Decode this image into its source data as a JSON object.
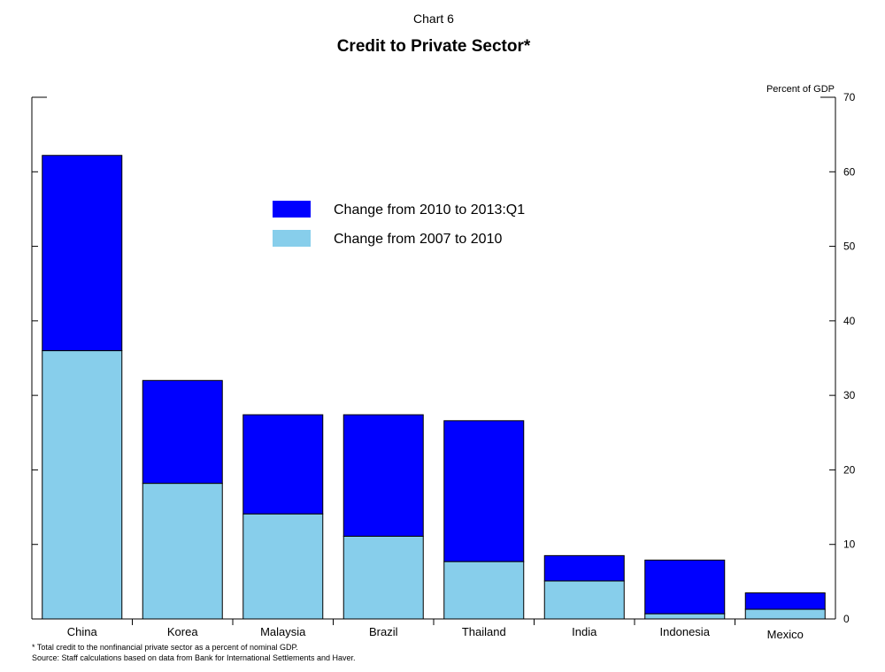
{
  "chart_data": {
    "type": "bar",
    "stacked": true,
    "caption": "Chart 6",
    "title": "Credit to Private Sector*",
    "ylabel": "Percent of GDP",
    "ylim": [
      0,
      70
    ],
    "yticks": [
      0,
      10,
      20,
      30,
      40,
      50,
      60,
      70
    ],
    "y_axis_side": "right",
    "categories": [
      "China",
      "Korea",
      "Malaysia",
      "Brazil",
      "Thailand",
      "India",
      "Indonesia",
      "Mexico"
    ],
    "series": [
      {
        "name": "Change from 2007 to 2010",
        "color": "#87CEEB",
        "values": [
          36,
          18.2,
          14.1,
          11.1,
          7.7,
          5.1,
          0.7,
          1.3
        ]
      },
      {
        "name": "Change from 2010 to 2013:Q1",
        "color": "#0000FF",
        "values": [
          26.2,
          13.8,
          13.3,
          16.3,
          18.9,
          3.4,
          7.2,
          2.2
        ]
      }
    ],
    "legend_order": [
      1,
      0
    ],
    "legend_position": "upper-center",
    "footnote": "* Total credit to the nonfinancial private sector as a percent of nominal GDP.",
    "source": "Source: Staff calculations based on data from Bank for International Settlements and Haver."
  }
}
